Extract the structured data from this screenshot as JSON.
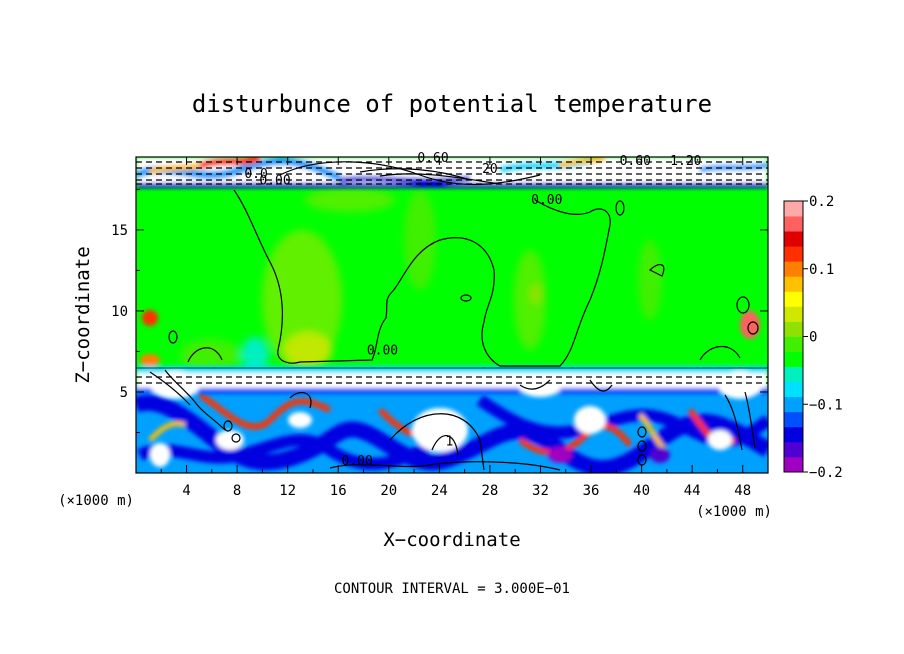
{
  "chart_data": {
    "type": "heatmap",
    "title": "disturbunce of potential temperature",
    "xlabel": "X−coordinate",
    "ylabel": "Z−coordinate",
    "x_unit": "(×1000 m)",
    "y_unit": "(×1000 m)",
    "xlim": [
      0,
      50
    ],
    "ylim": [
      0,
      19.5
    ],
    "x_ticks": [
      4,
      8,
      12,
      16,
      20,
      24,
      28,
      32,
      36,
      40,
      44,
      48
    ],
    "y_ticks": [
      5,
      10,
      15
    ],
    "colorbar": {
      "range": [
        -0.2,
        0.2
      ],
      "ticks": [
        {
          "value": 0.2,
          "label": "0.2"
        },
        {
          "value": 0.1,
          "label": "0.1"
        },
        {
          "value": 0,
          "label": "0"
        },
        {
          "value": -0.1,
          "label": "−0.1"
        },
        {
          "value": -0.2,
          "label": "−0.2"
        }
      ],
      "colors": [
        "#a000c0",
        "#5000d0",
        "#0000e0",
        "#0050ff",
        "#00a0ff",
        "#00e0ff",
        "#00f0c0",
        "#00ff00",
        "#40f000",
        "#90e000",
        "#d0e800",
        "#ffff00",
        "#ffc000",
        "#ff8000",
        "#ff3000",
        "#e00000",
        "#ff6060",
        "#ffa8a8"
      ]
    },
    "contour_labels": [
      {
        "x": 11,
        "y": 17.8,
        "text": "0.00"
      },
      {
        "x": 9.5,
        "y": 18.2,
        "text": "0.0"
      },
      {
        "x": 23.5,
        "y": 19.2,
        "text": "0.60"
      },
      {
        "x": 28,
        "y": 18.5,
        "text": "20"
      },
      {
        "x": 39.5,
        "y": 19,
        "text": "0.60"
      },
      {
        "x": 43.5,
        "y": 19,
        "text": "1.20"
      },
      {
        "x": 32.5,
        "y": 16.6,
        "text": "0.00"
      },
      {
        "x": 19.5,
        "y": 7.3,
        "text": "0.00"
      },
      {
        "x": 17.5,
        "y": 0.5,
        "text": "0.00"
      },
      {
        "x": 24.8,
        "y": 1.7,
        "text": "1"
      }
    ],
    "footer": "CONTOUR INTERVAL = 3.000E−01"
  }
}
